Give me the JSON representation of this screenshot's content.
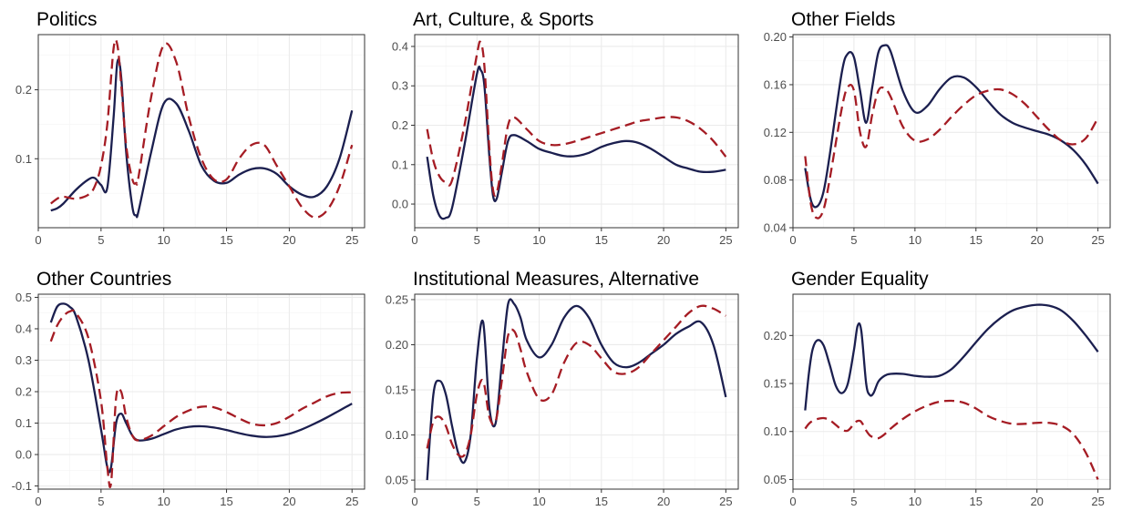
{
  "figure": {
    "colors": {
      "solid": "#1b1f4f",
      "dashed": "#a51c24"
    }
  },
  "chart_data": [
    {
      "type": "line",
      "title": "Politics",
      "xlim": [
        0,
        26
      ],
      "ylim": [
        0.0,
        0.28
      ],
      "xticks": [
        0,
        5,
        10,
        15,
        20,
        25
      ],
      "yticks": [
        0.1,
        0.2
      ],
      "ytick_labels": [
        "0.1",
        "0.2"
      ],
      "series": [
        {
          "style": "solid",
          "x": [
            1,
            1.5,
            2,
            3,
            4,
            4.5,
            5,
            5.5,
            6,
            6.3,
            6.6,
            7,
            7.5,
            7.8,
            8,
            9,
            10,
            11,
            12,
            13,
            14,
            15,
            16,
            17,
            18,
            19,
            20,
            21,
            22,
            23,
            24,
            25
          ],
          "y": [
            0.025,
            0.028,
            0.035,
            0.055,
            0.07,
            0.072,
            0.062,
            0.058,
            0.16,
            0.24,
            0.22,
            0.11,
            0.03,
            0.018,
            0.025,
            0.11,
            0.18,
            0.18,
            0.14,
            0.09,
            0.068,
            0.065,
            0.077,
            0.085,
            0.086,
            0.078,
            0.06,
            0.048,
            0.045,
            0.06,
            0.1,
            0.17
          ]
        },
        {
          "style": "dashed",
          "x": [
            1,
            1.5,
            2,
            3,
            4,
            4.5,
            5,
            5.5,
            6,
            6.3,
            6.6,
            7,
            7.5,
            7.8,
            8,
            9,
            10,
            11,
            12,
            13,
            14,
            15,
            16,
            17,
            18,
            19,
            20,
            21,
            22,
            23,
            24,
            25
          ],
          "y": [
            0.035,
            0.042,
            0.045,
            0.042,
            0.048,
            0.06,
            0.09,
            0.15,
            0.26,
            0.265,
            0.21,
            0.12,
            0.07,
            0.065,
            0.075,
            0.19,
            0.265,
            0.24,
            0.16,
            0.1,
            0.07,
            0.07,
            0.1,
            0.12,
            0.12,
            0.09,
            0.06,
            0.03,
            0.015,
            0.025,
            0.06,
            0.12
          ]
        }
      ]
    },
    {
      "type": "line",
      "title": "Art, Culture, & Sports",
      "xlim": [
        0,
        26
      ],
      "ylim": [
        -0.06,
        0.43
      ],
      "xticks": [
        0,
        5,
        10,
        15,
        20,
        25
      ],
      "yticks": [
        0.0,
        0.1,
        0.2,
        0.3,
        0.4
      ],
      "ytick_labels": [
        "0.0",
        "0.1",
        "0.2",
        "0.3",
        "0.4"
      ],
      "series": [
        {
          "style": "solid",
          "x": [
            1,
            1.5,
            2,
            2.5,
            3,
            4,
            5,
            5.3,
            5.6,
            6,
            6.3,
            6.6,
            7,
            7.5,
            8,
            9,
            10,
            11,
            12,
            13,
            14,
            15,
            16,
            17,
            18,
            19,
            20,
            21,
            22,
            23,
            24,
            25
          ],
          "y": [
            0.12,
            0.02,
            -0.03,
            -0.035,
            -0.01,
            0.15,
            0.33,
            0.34,
            0.3,
            0.12,
            0.02,
            0.015,
            0.08,
            0.16,
            0.175,
            0.16,
            0.14,
            0.13,
            0.122,
            0.122,
            0.13,
            0.145,
            0.155,
            0.16,
            0.155,
            0.14,
            0.12,
            0.1,
            0.09,
            0.082,
            0.082,
            0.087
          ]
        },
        {
          "style": "dashed",
          "x": [
            1,
            1.5,
            2,
            2.5,
            3,
            4,
            5,
            5.3,
            5.6,
            6,
            6.3,
            6.6,
            7,
            7.5,
            8,
            9,
            10,
            11,
            12,
            13,
            14,
            15,
            16,
            17,
            18,
            19,
            20,
            21,
            22,
            23,
            24,
            25
          ],
          "y": [
            0.19,
            0.11,
            0.07,
            0.055,
            0.06,
            0.2,
            0.38,
            0.41,
            0.35,
            0.14,
            0.035,
            0.03,
            0.1,
            0.2,
            0.22,
            0.19,
            0.16,
            0.15,
            0.152,
            0.16,
            0.17,
            0.18,
            0.19,
            0.2,
            0.21,
            0.215,
            0.22,
            0.22,
            0.21,
            0.19,
            0.16,
            0.12
          ]
        }
      ]
    },
    {
      "type": "line",
      "title": "Other Fields",
      "xlim": [
        0,
        26
      ],
      "ylim": [
        0.04,
        0.202
      ],
      "xticks": [
        0,
        5,
        10,
        15,
        20,
        25
      ],
      "yticks": [
        0.04,
        0.08,
        0.12,
        0.16,
        0.2
      ],
      "ytick_labels": [
        "0.04",
        "0.08",
        "0.12",
        "0.16",
        "0.20"
      ],
      "series": [
        {
          "style": "solid",
          "x": [
            1,
            1.5,
            2,
            2.5,
            3,
            4,
            4.5,
            5,
            5.5,
            6,
            6.5,
            7,
            7.5,
            8,
            9,
            10,
            11,
            12,
            13,
            14,
            15,
            16,
            17,
            18,
            19,
            20,
            21,
            22,
            23,
            24,
            25
          ],
          "y": [
            0.09,
            0.062,
            0.058,
            0.07,
            0.1,
            0.17,
            0.186,
            0.183,
            0.155,
            0.128,
            0.158,
            0.187,
            0.193,
            0.188,
            0.155,
            0.137,
            0.142,
            0.156,
            0.166,
            0.166,
            0.158,
            0.146,
            0.135,
            0.128,
            0.124,
            0.121,
            0.118,
            0.113,
            0.105,
            0.093,
            0.077
          ]
        },
        {
          "style": "dashed",
          "x": [
            1,
            1.5,
            2,
            2.5,
            3,
            4,
            4.5,
            5,
            5.5,
            6,
            6.5,
            7,
            7.5,
            8,
            9,
            10,
            11,
            12,
            13,
            14,
            15,
            16,
            17,
            18,
            19,
            20,
            21,
            22,
            23,
            24,
            25
          ],
          "y": [
            0.1,
            0.058,
            0.048,
            0.055,
            0.08,
            0.14,
            0.158,
            0.155,
            0.12,
            0.108,
            0.135,
            0.155,
            0.157,
            0.15,
            0.125,
            0.113,
            0.114,
            0.122,
            0.133,
            0.143,
            0.151,
            0.155,
            0.156,
            0.152,
            0.144,
            0.133,
            0.122,
            0.113,
            0.11,
            0.115,
            0.132
          ]
        }
      ]
    },
    {
      "type": "line",
      "title": "Other Countries",
      "xlim": [
        0,
        26
      ],
      "ylim": [
        -0.11,
        0.51
      ],
      "xticks": [
        0,
        5,
        10,
        15,
        20,
        25
      ],
      "yticks": [
        -0.1,
        0.0,
        0.1,
        0.2,
        0.3,
        0.4,
        0.5
      ],
      "ytick_labels": [
        "-0.1",
        "0.0",
        "0.1",
        "0.2",
        "0.3",
        "0.4",
        "0.5"
      ],
      "series": [
        {
          "style": "solid",
          "x": [
            1,
            1.5,
            2,
            2.5,
            3,
            4,
            5,
            5.5,
            5.8,
            6.2,
            6.6,
            7,
            7.5,
            8,
            9,
            10,
            11,
            12,
            13,
            14,
            15,
            16,
            17,
            18,
            19,
            20,
            21,
            22,
            23,
            24,
            25
          ],
          "y": [
            0.42,
            0.47,
            0.48,
            0.47,
            0.44,
            0.3,
            0.08,
            -0.04,
            -0.04,
            0.1,
            0.13,
            0.1,
            0.06,
            0.045,
            0.05,
            0.065,
            0.08,
            0.088,
            0.09,
            0.086,
            0.078,
            0.068,
            0.06,
            0.056,
            0.058,
            0.066,
            0.08,
            0.098,
            0.118,
            0.14,
            0.162
          ]
        },
        {
          "style": "dashed",
          "x": [
            1,
            1.5,
            2,
            2.5,
            3,
            4,
            5,
            5.5,
            5.8,
            6.2,
            6.6,
            7,
            7.5,
            8,
            9,
            10,
            11,
            12,
            13,
            14,
            15,
            16,
            17,
            18,
            19,
            20,
            21,
            22,
            23,
            24,
            25
          ],
          "y": [
            0.36,
            0.41,
            0.44,
            0.455,
            0.45,
            0.37,
            0.17,
            -0.04,
            -0.09,
            0.18,
            0.2,
            0.12,
            0.06,
            0.045,
            0.06,
            0.09,
            0.12,
            0.14,
            0.152,
            0.15,
            0.135,
            0.115,
            0.098,
            0.093,
            0.1,
            0.12,
            0.145,
            0.165,
            0.185,
            0.196,
            0.198
          ]
        }
      ]
    },
    {
      "type": "line",
      "title": "Institutional Measures, Alternative",
      "xlim": [
        0,
        26
      ],
      "ylim": [
        0.04,
        0.256
      ],
      "xticks": [
        0,
        5,
        10,
        15,
        20,
        25
      ],
      "yticks": [
        0.05,
        0.1,
        0.15,
        0.2,
        0.25
      ],
      "ytick_labels": [
        "0.05",
        "0.10",
        "0.15",
        "0.20",
        "0.25"
      ],
      "series": [
        {
          "style": "solid",
          "x": [
            1,
            1.5,
            2,
            2.5,
            3,
            3.5,
            4,
            4.5,
            5,
            5.5,
            6,
            6.5,
            7,
            7.5,
            8,
            8.5,
            9,
            10,
            11,
            12,
            13,
            14,
            15,
            16,
            17,
            18,
            19,
            20,
            21,
            22,
            23,
            24,
            25
          ],
          "y": [
            0.05,
            0.145,
            0.16,
            0.145,
            0.11,
            0.08,
            0.07,
            0.1,
            0.185,
            0.225,
            0.13,
            0.113,
            0.18,
            0.245,
            0.245,
            0.23,
            0.205,
            0.186,
            0.2,
            0.23,
            0.243,
            0.23,
            0.2,
            0.18,
            0.175,
            0.18,
            0.19,
            0.2,
            0.212,
            0.22,
            0.225,
            0.2,
            0.142
          ]
        },
        {
          "style": "dashed",
          "x": [
            1,
            1.5,
            2,
            2.5,
            3,
            3.5,
            4,
            4.5,
            5,
            5.5,
            6,
            6.5,
            7,
            7.5,
            8,
            8.5,
            9,
            10,
            11,
            12,
            13,
            14,
            15,
            16,
            17,
            18,
            19,
            20,
            21,
            22,
            23,
            24,
            25
          ],
          "y": [
            0.085,
            0.115,
            0.12,
            0.11,
            0.09,
            0.078,
            0.078,
            0.1,
            0.145,
            0.16,
            0.12,
            0.115,
            0.16,
            0.21,
            0.215,
            0.195,
            0.17,
            0.14,
            0.145,
            0.18,
            0.202,
            0.2,
            0.185,
            0.17,
            0.168,
            0.175,
            0.19,
            0.205,
            0.22,
            0.235,
            0.243,
            0.24,
            0.232
          ]
        }
      ]
    },
    {
      "type": "line",
      "title": "Gender Equality",
      "xlim": [
        0,
        26
      ],
      "ylim": [
        0.04,
        0.243
      ],
      "xticks": [
        0,
        5,
        10,
        15,
        20,
        25
      ],
      "yticks": [
        0.05,
        0.1,
        0.15,
        0.2
      ],
      "ytick_labels": [
        "0.05",
        "0.10",
        "0.15",
        "0.20"
      ],
      "series": [
        {
          "style": "solid",
          "x": [
            1,
            1.3,
            1.6,
            2,
            2.5,
            3,
            3.5,
            4,
            4.5,
            5,
            5.3,
            5.6,
            6,
            6.3,
            6.6,
            7,
            7.5,
            8,
            9,
            10,
            11,
            12,
            13,
            14,
            15,
            16,
            17,
            18,
            19,
            20,
            21,
            22,
            23,
            24,
            25
          ],
          "y": [
            0.122,
            0.16,
            0.185,
            0.195,
            0.19,
            0.17,
            0.148,
            0.14,
            0.15,
            0.185,
            0.21,
            0.205,
            0.15,
            0.138,
            0.14,
            0.152,
            0.158,
            0.16,
            0.16,
            0.158,
            0.157,
            0.158,
            0.165,
            0.178,
            0.193,
            0.207,
            0.218,
            0.226,
            0.23,
            0.232,
            0.231,
            0.226,
            0.215,
            0.2,
            0.183
          ]
        },
        {
          "style": "dashed",
          "x": [
            1,
            1.3,
            1.6,
            2,
            2.5,
            3,
            3.5,
            4,
            4.5,
            5,
            5.3,
            5.6,
            6,
            6.3,
            6.6,
            7,
            7.5,
            8,
            9,
            10,
            11,
            12,
            13,
            14,
            15,
            16,
            17,
            18,
            19,
            20,
            21,
            22,
            23,
            24,
            25
          ],
          "y": [
            0.103,
            0.108,
            0.111,
            0.113,
            0.114,
            0.112,
            0.107,
            0.102,
            0.101,
            0.108,
            0.111,
            0.11,
            0.101,
            0.096,
            0.094,
            0.093,
            0.097,
            0.103,
            0.113,
            0.121,
            0.127,
            0.131,
            0.132,
            0.13,
            0.124,
            0.116,
            0.111,
            0.108,
            0.108,
            0.109,
            0.109,
            0.106,
            0.097,
            0.078,
            0.05
          ]
        }
      ]
    }
  ]
}
